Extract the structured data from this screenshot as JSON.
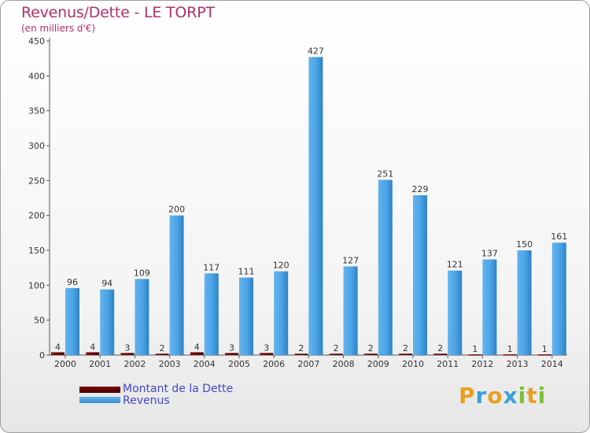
{
  "header": {
    "title": "Revenus/Dette - LE TORPT",
    "subtitle": "(en milliers d'€)"
  },
  "legend": {
    "debt_label": "Montant de la Dette",
    "revenue_label": "Revenus"
  },
  "logo": {
    "letters": [
      "P",
      "r",
      "o",
      "x",
      "i",
      "t",
      "i"
    ],
    "colors": [
      "#e8a020",
      "#3aa0d8",
      "#e8a020",
      "#3aa0d8",
      "#7cc030",
      "#e8a020",
      "#7cc030"
    ]
  },
  "colors": {
    "debt": "#6b0a0a",
    "revenue": "#4aa3e6",
    "title": "#b0306a",
    "legend_text": "#4646c8"
  },
  "chart_data": {
    "type": "bar",
    "title": "Revenus/Dette - LE TORPT",
    "subtitle": "(en milliers d'€)",
    "categories": [
      "2000",
      "2001",
      "2002",
      "2003",
      "2004",
      "2005",
      "2006",
      "2007",
      "2008",
      "2009",
      "2010",
      "2011",
      "2012",
      "2013",
      "2014"
    ],
    "series": [
      {
        "name": "Montant de la Dette",
        "values": [
          4,
          4,
          3,
          2,
          4,
          3,
          3,
          2,
          2,
          2,
          2,
          2,
          1,
          1,
          1
        ]
      },
      {
        "name": "Revenus",
        "values": [
          96,
          94,
          109,
          200,
          117,
          111,
          120,
          427,
          127,
          251,
          229,
          121,
          137,
          150,
          161
        ]
      }
    ],
    "ylim": [
      0,
      450
    ],
    "yticks": [
      0,
      50,
      100,
      150,
      200,
      250,
      300,
      350,
      400,
      450
    ],
    "grid": false,
    "legend": "bottom-left"
  }
}
